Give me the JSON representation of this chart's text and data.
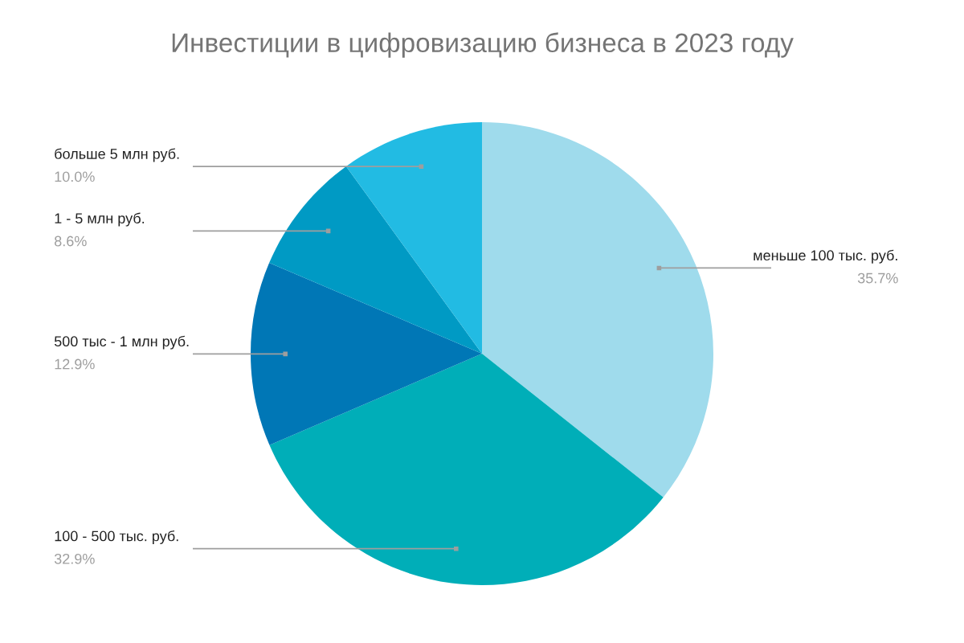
{
  "chart_data": {
    "type": "pie",
    "title": "Инвестиции в цифровизацию бизнеса в 2023 году",
    "categories": [
      "меньше 100 тыс. руб.",
      "100 - 500 тыс. руб.",
      "500 тыс - 1 млн руб.",
      "1 - 5 млн руб.",
      "больше 5 млн руб."
    ],
    "values": [
      35.7,
      32.9,
      12.9,
      8.6,
      10.0
    ],
    "colors": [
      "#9fdbec",
      "#00aeb8",
      "#0077b6",
      "#009ac4",
      "#22bbe3"
    ],
    "value_labels": [
      "35.7%",
      "32.9%",
      "12.9%",
      "8.6%",
      "10.0%"
    ]
  }
}
